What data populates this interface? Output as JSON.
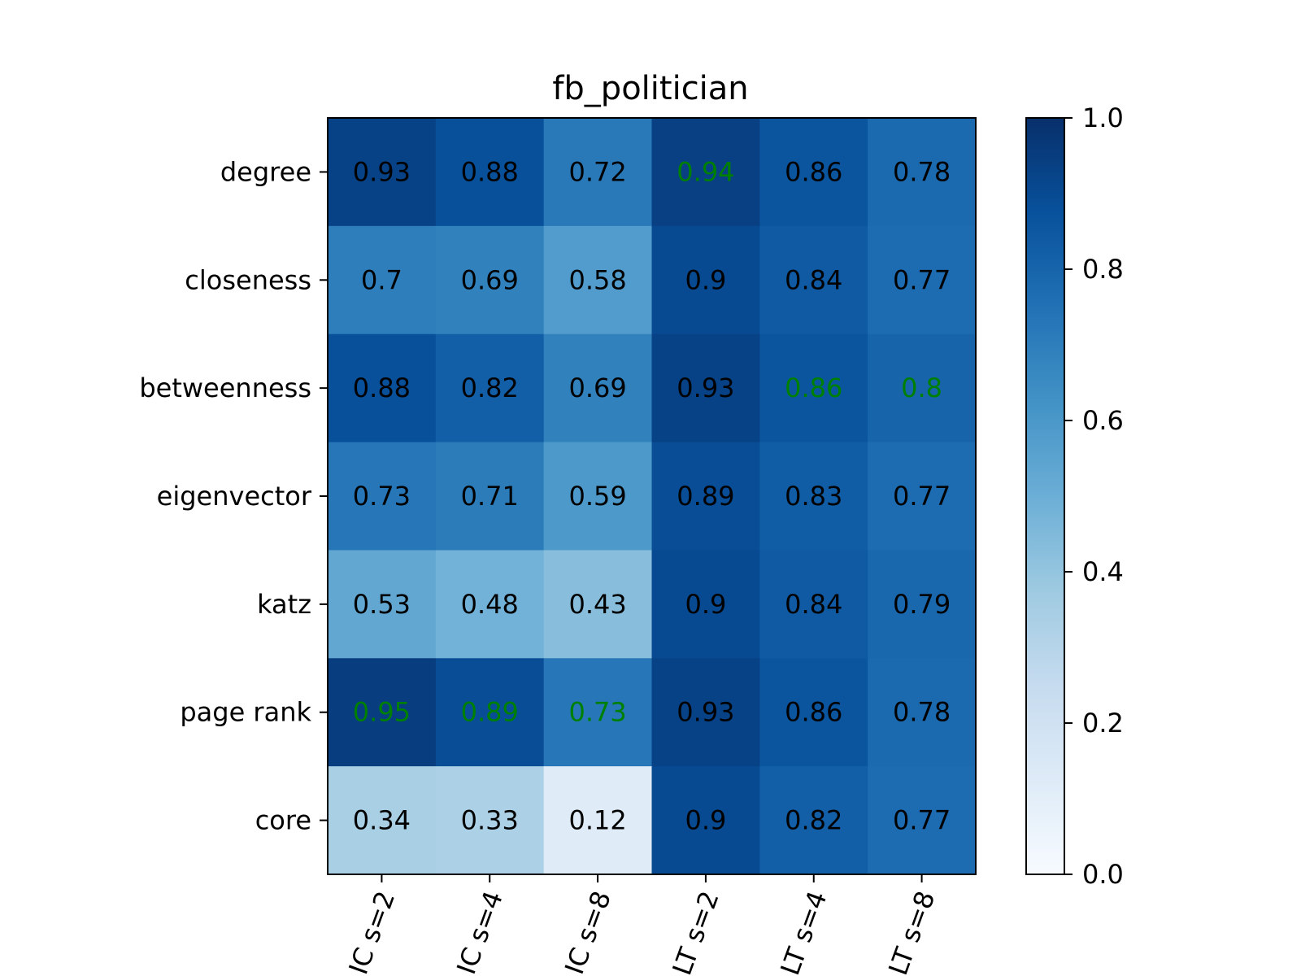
{
  "chart_data": {
    "type": "heatmap",
    "title": "fb_politician",
    "rows": [
      "degree",
      "closeness",
      "betweenness",
      "eigenvector",
      "katz",
      "page rank",
      "core"
    ],
    "columns": [
      "IC s=2",
      "IC s=4",
      "IC s=8",
      "LT s=2",
      "LT s=4",
      "LT s=8"
    ],
    "values": [
      [
        0.93,
        0.88,
        0.72,
        0.94,
        0.86,
        0.78
      ],
      [
        0.7,
        0.69,
        0.58,
        0.9,
        0.84,
        0.77
      ],
      [
        0.88,
        0.82,
        0.69,
        0.93,
        0.86,
        0.8
      ],
      [
        0.73,
        0.71,
        0.59,
        0.89,
        0.83,
        0.77
      ],
      [
        0.53,
        0.48,
        0.43,
        0.9,
        0.84,
        0.79
      ],
      [
        0.95,
        0.89,
        0.73,
        0.93,
        0.86,
        0.78
      ],
      [
        0.34,
        0.33,
        0.12,
        0.9,
        0.82,
        0.77
      ]
    ],
    "highlight_color": "#008000",
    "label_color": "#000000",
    "highlighted": [
      [
        0,
        3
      ],
      [
        2,
        4
      ],
      [
        2,
        5
      ],
      [
        5,
        0
      ],
      [
        5,
        1
      ],
      [
        5,
        2
      ]
    ],
    "colormap": "Blues",
    "colorbar": {
      "range": [
        0.0,
        1.0
      ],
      "ticks": [
        "0.0",
        "0.2",
        "0.4",
        "0.6",
        "0.8",
        "1.0"
      ]
    },
    "xtick_rotation": "70 deg",
    "grid": false
  }
}
